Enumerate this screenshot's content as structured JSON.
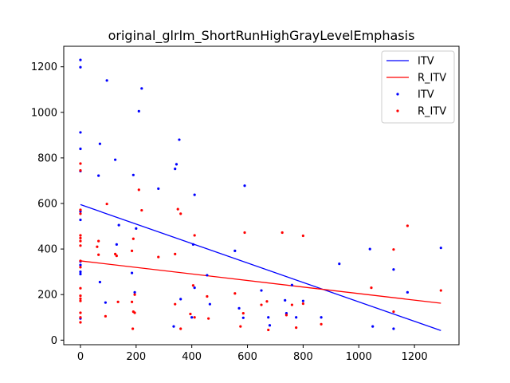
{
  "chart_data": {
    "type": "scatter",
    "title": "original_glrlm_ShortRunHighGrayLevelEmphasis",
    "xlabel": "",
    "ylabel": "",
    "xlim": [
      -60,
      1360
    ],
    "ylim": [
      -20,
      1290
    ],
    "x_ticks": [
      0,
      200,
      400,
      600,
      800,
      1000,
      1200
    ],
    "y_ticks": [
      0,
      200,
      400,
      600,
      800,
      1000,
      1200
    ],
    "grid": false,
    "legend_position": "top-right",
    "legend": [
      "ITV",
      "R_ITV",
      "ITV",
      "R_ITV"
    ],
    "lines": [
      {
        "name": "ITV",
        "color": "#0000ff",
        "x": [
          0,
          1295
        ],
        "y": [
          595,
          42
        ]
      },
      {
        "name": "R_ITV",
        "color": "#ff0000",
        "x": [
          0,
          1295
        ],
        "y": [
          348,
          162
        ]
      }
    ],
    "series": [
      {
        "name": "ITV",
        "color": "#0000ff",
        "points": [
          [
            0,
            1230
          ],
          [
            0,
            1198
          ],
          [
            0,
            912
          ],
          [
            0,
            840
          ],
          [
            0,
            742
          ],
          [
            0,
            565
          ],
          [
            0,
            528
          ],
          [
            0,
            345
          ],
          [
            0,
            330
          ],
          [
            0,
            300
          ],
          [
            0,
            290
          ],
          [
            0,
            95
          ],
          [
            70,
            862
          ],
          [
            65,
            722
          ],
          [
            95,
            1140
          ],
          [
            125,
            792
          ],
          [
            138,
            505
          ],
          [
            70,
            255
          ],
          [
            90,
            165
          ],
          [
            130,
            420
          ],
          [
            190,
            725
          ],
          [
            195,
            210
          ],
          [
            200,
            490
          ],
          [
            210,
            1005
          ],
          [
            220,
            1105
          ],
          [
            280,
            665
          ],
          [
            185,
            295
          ],
          [
            340,
            752
          ],
          [
            345,
            772
          ],
          [
            355,
            880
          ],
          [
            360,
            180
          ],
          [
            335,
            60
          ],
          [
            405,
            420
          ],
          [
            410,
            638
          ],
          [
            410,
            230
          ],
          [
            400,
            100
          ],
          [
            455,
            285
          ],
          [
            465,
            158
          ],
          [
            555,
            392
          ],
          [
            590,
            678
          ],
          [
            570,
            140
          ],
          [
            585,
            98
          ],
          [
            650,
            218
          ],
          [
            675,
            100
          ],
          [
            680,
            65
          ],
          [
            735,
            175
          ],
          [
            740,
            118
          ],
          [
            760,
            242
          ],
          [
            775,
            100
          ],
          [
            800,
            172
          ],
          [
            865,
            100
          ],
          [
            930,
            335
          ],
          [
            1040,
            400
          ],
          [
            1050,
            60
          ],
          [
            1125,
            310
          ],
          [
            1125,
            50
          ],
          [
            1175,
            210
          ],
          [
            1295,
            405
          ]
        ]
      },
      {
        "name": "R_ITV",
        "color": "#ff0000",
        "points": [
          [
            0,
            775
          ],
          [
            0,
            745
          ],
          [
            0,
            572
          ],
          [
            0,
            555
          ],
          [
            0,
            460
          ],
          [
            0,
            448
          ],
          [
            0,
            435
          ],
          [
            0,
            415
          ],
          [
            0,
            348
          ],
          [
            0,
            320
          ],
          [
            0,
            228
          ],
          [
            0,
            195
          ],
          [
            0,
            182
          ],
          [
            0,
            172
          ],
          [
            0,
            120
          ],
          [
            0,
            100
          ],
          [
            0,
            78
          ],
          [
            65,
            435
          ],
          [
            60,
            410
          ],
          [
            65,
            375
          ],
          [
            95,
            598
          ],
          [
            90,
            105
          ],
          [
            125,
            378
          ],
          [
            130,
            370
          ],
          [
            135,
            168
          ],
          [
            185,
            392
          ],
          [
            190,
            445
          ],
          [
            185,
            168
          ],
          [
            195,
            200
          ],
          [
            190,
            125
          ],
          [
            195,
            120
          ],
          [
            188,
            50
          ],
          [
            210,
            660
          ],
          [
            220,
            570
          ],
          [
            280,
            365
          ],
          [
            340,
            158
          ],
          [
            350,
            575
          ],
          [
            360,
            555
          ],
          [
            340,
            378
          ],
          [
            360,
            50
          ],
          [
            410,
            460
          ],
          [
            405,
            240
          ],
          [
            410,
            100
          ],
          [
            395,
            115
          ],
          [
            455,
            192
          ],
          [
            460,
            95
          ],
          [
            555,
            205
          ],
          [
            575,
            60
          ],
          [
            590,
            472
          ],
          [
            585,
            118
          ],
          [
            650,
            155
          ],
          [
            670,
            170
          ],
          [
            675,
            45
          ],
          [
            725,
            472
          ],
          [
            740,
            110
          ],
          [
            760,
            155
          ],
          [
            775,
            55
          ],
          [
            800,
            458
          ],
          [
            800,
            160
          ],
          [
            865,
            70
          ],
          [
            1045,
            230
          ],
          [
            1125,
            398
          ],
          [
            1125,
            125
          ],
          [
            1175,
            502
          ],
          [
            1295,
            218
          ]
        ]
      }
    ]
  }
}
